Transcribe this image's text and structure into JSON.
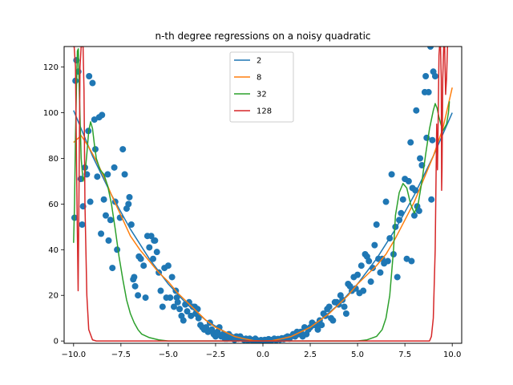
{
  "chart_data": {
    "type": "scatter",
    "title": "n-th degree regressions on a noisy quadratic",
    "xlabel": "",
    "ylabel": "",
    "xlim": [
      -10.5,
      10.5
    ],
    "ylim": [
      -1,
      129
    ],
    "x_ticks": [
      -10.0,
      -7.5,
      -5.0,
      -2.5,
      0.0,
      2.5,
      5.0,
      7.5,
      10.0
    ],
    "x_tick_labels": [
      "−10.0",
      "−7.5",
      "−5.0",
      "−2.5",
      "0.0",
      "2.5",
      "5.0",
      "7.5",
      "10.0"
    ],
    "y_ticks": [
      0,
      20,
      40,
      60,
      80,
      100,
      120
    ],
    "y_tick_labels": [
      "0",
      "20",
      "40",
      "60",
      "80",
      "100",
      "120"
    ],
    "grid": false,
    "legend_position": "top-center",
    "scatter_color": "#1f77b4",
    "scatter": [
      [
        -9.95,
        54
      ],
      [
        -9.9,
        114
      ],
      [
        -9.85,
        123
      ],
      [
        -9.75,
        118
      ],
      [
        -9.62,
        71
      ],
      [
        -9.55,
        51
      ],
      [
        -9.5,
        59
      ],
      [
        -9.4,
        76
      ],
      [
        -9.3,
        73
      ],
      [
        -9.22,
        92
      ],
      [
        -9.18,
        116
      ],
      [
        -9.12,
        61
      ],
      [
        -9.0,
        113
      ],
      [
        -8.9,
        97
      ],
      [
        -8.85,
        84
      ],
      [
        -8.75,
        72
      ],
      [
        -8.65,
        98
      ],
      [
        -8.55,
        47
      ],
      [
        -8.5,
        99
      ],
      [
        -8.4,
        62
      ],
      [
        -8.3,
        55
      ],
      [
        -8.2,
        73
      ],
      [
        -8.15,
        44
      ],
      [
        -8.05,
        53
      ],
      [
        -7.95,
        32
      ],
      [
        -7.85,
        76
      ],
      [
        -7.8,
        61
      ],
      [
        -7.7,
        40
      ],
      [
        -7.55,
        54
      ],
      [
        -7.4,
        84
      ],
      [
        -7.3,
        73
      ],
      [
        -7.2,
        58
      ],
      [
        -7.1,
        60
      ],
      [
        -7.05,
        63
      ],
      [
        -6.95,
        51
      ],
      [
        -6.85,
        27
      ],
      [
        -6.8,
        28
      ],
      [
        -6.75,
        24
      ],
      [
        -6.6,
        20
      ],
      [
        -6.55,
        37
      ],
      [
        -6.45,
        36
      ],
      [
        -6.3,
        33
      ],
      [
        -6.2,
        19
      ],
      [
        -6.1,
        46
      ],
      [
        -6.0,
        41
      ],
      [
        -5.9,
        46
      ],
      [
        -5.8,
        36
      ],
      [
        -5.75,
        44
      ],
      [
        -5.7,
        44
      ],
      [
        -5.6,
        39
      ],
      [
        -5.5,
        30
      ],
      [
        -5.4,
        22
      ],
      [
        -5.3,
        15
      ],
      [
        -5.2,
        32
      ],
      [
        -5.1,
        19
      ],
      [
        -5.0,
        33
      ],
      [
        -4.9,
        19
      ],
      [
        -4.8,
        28
      ],
      [
        -4.7,
        15
      ],
      [
        -4.6,
        22
      ],
      [
        -4.55,
        19
      ],
      [
        -4.5,
        17
      ],
      [
        -4.4,
        14
      ],
      [
        -4.3,
        11
      ],
      [
        -4.2,
        9
      ],
      [
        -4.1,
        16
      ],
      [
        -4.0,
        13
      ],
      [
        -3.9,
        17
      ],
      [
        -3.8,
        11
      ],
      [
        -3.7,
        15
      ],
      [
        -3.6,
        15
      ],
      [
        -3.55,
        12
      ],
      [
        -3.45,
        14
      ],
      [
        -3.4,
        10
      ],
      [
        -3.3,
        7
      ],
      [
        -3.2,
        6
      ],
      [
        -3.1,
        5
      ],
      [
        -3.0,
        6
      ],
      [
        -2.9,
        4
      ],
      [
        -2.8,
        8
      ],
      [
        -2.7,
        5
      ],
      [
        -2.6,
        3
      ],
      [
        -2.5,
        2
      ],
      [
        -2.4,
        4
      ],
      [
        -2.3,
        6
      ],
      [
        -2.2,
        2
      ],
      [
        -2.1,
        3
      ],
      [
        -2.0,
        1
      ],
      [
        -1.9,
        1
      ],
      [
        -1.8,
        3
      ],
      [
        -1.7,
        2
      ],
      [
        -1.6,
        1
      ],
      [
        -1.5,
        0.5
      ],
      [
        -1.4,
        2
      ],
      [
        -1.3,
        1
      ],
      [
        -1.2,
        2
      ],
      [
        -1.1,
        1
      ],
      [
        -1.0,
        0.5
      ],
      [
        -0.9,
        1
      ],
      [
        -0.8,
        0.3
      ],
      [
        -0.7,
        1
      ],
      [
        -0.6,
        0.5
      ],
      [
        -0.5,
        0.2
      ],
      [
        -0.4,
        1
      ],
      [
        -0.3,
        0.3
      ],
      [
        -0.2,
        0.1
      ],
      [
        -0.1,
        0.4
      ],
      [
        0.0,
        0.1
      ],
      [
        0.1,
        0.5
      ],
      [
        0.2,
        0.2
      ],
      [
        0.3,
        0.8
      ],
      [
        0.4,
        0.3
      ],
      [
        0.5,
        0.5
      ],
      [
        0.6,
        1
      ],
      [
        0.7,
        0.4
      ],
      [
        0.8,
        0.9
      ],
      [
        0.9,
        0.6
      ],
      [
        1.0,
        1.2
      ],
      [
        1.1,
        0.8
      ],
      [
        1.2,
        1.5
      ],
      [
        1.3,
        2
      ],
      [
        1.4,
        1
      ],
      [
        1.5,
        2
      ],
      [
        1.6,
        3
      ],
      [
        1.7,
        2
      ],
      [
        1.8,
        4
      ],
      [
        1.9,
        3
      ],
      [
        2.0,
        4
      ],
      [
        2.1,
        2
      ],
      [
        2.2,
        6
      ],
      [
        2.3,
        3
      ],
      [
        2.4,
        5
      ],
      [
        2.5,
        6
      ],
      [
        2.6,
        8
      ],
      [
        2.7,
        7
      ],
      [
        2.8,
        7
      ],
      [
        2.9,
        5
      ],
      [
        3.0,
        9
      ],
      [
        3.1,
        7
      ],
      [
        3.2,
        12
      ],
      [
        3.3,
        11
      ],
      [
        3.4,
        14
      ],
      [
        3.5,
        15
      ],
      [
        3.6,
        10
      ],
      [
        3.7,
        9
      ],
      [
        3.8,
        17
      ],
      [
        3.9,
        17
      ],
      [
        4.0,
        16
      ],
      [
        4.1,
        20
      ],
      [
        4.2,
        18
      ],
      [
        4.3,
        15
      ],
      [
        4.4,
        12
      ],
      [
        4.5,
        25
      ],
      [
        4.6,
        24
      ],
      [
        4.7,
        22
      ],
      [
        4.8,
        28
      ],
      [
        4.9,
        23
      ],
      [
        5.0,
        29
      ],
      [
        5.1,
        21
      ],
      [
        5.2,
        33
      ],
      [
        5.3,
        22
      ],
      [
        5.4,
        38
      ],
      [
        5.5,
        37
      ],
      [
        5.6,
        35
      ],
      [
        5.7,
        26
      ],
      [
        5.8,
        32
      ],
      [
        5.9,
        42
      ],
      [
        6.0,
        51
      ],
      [
        6.1,
        36
      ],
      [
        6.2,
        30
      ],
      [
        6.3,
        36
      ],
      [
        6.4,
        34
      ],
      [
        6.5,
        61
      ],
      [
        6.6,
        35
      ],
      [
        6.7,
        45
      ],
      [
        6.8,
        73
      ],
      [
        6.9,
        38
      ],
      [
        7.0,
        50
      ],
      [
        7.1,
        28
      ],
      [
        7.2,
        53
      ],
      [
        7.3,
        56
      ],
      [
        7.4,
        62
      ],
      [
        7.5,
        71
      ],
      [
        7.6,
        36
      ],
      [
        7.7,
        70
      ],
      [
        7.8,
        87
      ],
      [
        7.85,
        35
      ],
      [
        7.9,
        67
      ],
      [
        8.0,
        55
      ],
      [
        8.05,
        66
      ],
      [
        8.1,
        101
      ],
      [
        8.15,
        59
      ],
      [
        8.25,
        57
      ],
      [
        8.3,
        80
      ],
      [
        8.4,
        77
      ],
      [
        8.55,
        109
      ],
      [
        8.6,
        116
      ],
      [
        8.65,
        89
      ],
      [
        8.75,
        109
      ],
      [
        8.85,
        129
      ],
      [
        8.9,
        62
      ],
      [
        8.95,
        88
      ],
      [
        9.0,
        118
      ],
      [
        9.1,
        116
      ]
    ],
    "series": [
      {
        "name": "2",
        "degree": 2,
        "color": "#1f77b4"
      },
      {
        "name": "8",
        "degree": 8,
        "color": "#ff7f0e"
      },
      {
        "name": "32",
        "degree": 32,
        "color": "#2ca02c"
      },
      {
        "name": "128",
        "degree": 128,
        "color": "#d62728"
      }
    ],
    "curves": {
      "2": [
        [
          -10,
          101
        ],
        [
          -9,
          81
        ],
        [
          -8,
          64
        ],
        [
          -7,
          49
        ],
        [
          -6,
          36
        ],
        [
          -5,
          25
        ],
        [
          -4,
          16
        ],
        [
          -3,
          9
        ],
        [
          -2,
          4
        ],
        [
          -1,
          1
        ],
        [
          0,
          0
        ],
        [
          1,
          1
        ],
        [
          2,
          4
        ],
        [
          3,
          9
        ],
        [
          4,
          16
        ],
        [
          5,
          25
        ],
        [
          6,
          36
        ],
        [
          7,
          49
        ],
        [
          8,
          64
        ],
        [
          9,
          81
        ],
        [
          10,
          100
        ]
      ],
      "8": [
        [
          -10,
          87
        ],
        [
          -9.6,
          90
        ],
        [
          -9.2,
          85
        ],
        [
          -8.8,
          79
        ],
        [
          -8.4,
          72
        ],
        [
          -8,
          64
        ],
        [
          -7.5,
          55
        ],
        [
          -7,
          46
        ],
        [
          -6.5,
          40
        ],
        [
          -6,
          35
        ],
        [
          -5.5,
          30
        ],
        [
          -5,
          26
        ],
        [
          -4.5,
          21
        ],
        [
          -4,
          17
        ],
        [
          -3.5,
          13
        ],
        [
          -3,
          9
        ],
        [
          -2.5,
          6
        ],
        [
          -2,
          4
        ],
        [
          -1.5,
          2
        ],
        [
          -1,
          1
        ],
        [
          -0.5,
          0.2
        ],
        [
          0,
          0
        ],
        [
          0.5,
          0.2
        ],
        [
          1,
          1
        ],
        [
          1.5,
          2
        ],
        [
          2,
          4
        ],
        [
          2.5,
          6
        ],
        [
          3,
          9
        ],
        [
          3.5,
          12
        ],
        [
          4,
          16
        ],
        [
          4.5,
          20
        ],
        [
          5,
          25
        ],
        [
          5.5,
          29
        ],
        [
          6,
          33
        ],
        [
          6.5,
          38
        ],
        [
          7,
          45
        ],
        [
          7.5,
          53
        ],
        [
          8,
          61
        ],
        [
          8.5,
          71
        ],
        [
          9,
          81
        ],
        [
          9.5,
          93
        ],
        [
          10,
          111
        ]
      ],
      "32": [
        [
          -10,
          43
        ],
        [
          -9.95,
          60
        ],
        [
          -9.9,
          90
        ],
        [
          -9.85,
          110
        ],
        [
          -9.8,
          127
        ],
        [
          -9.75,
          128
        ],
        [
          -9.7,
          110
        ],
        [
          -9.6,
          80
        ],
        [
          -9.5,
          70
        ],
        [
          -9.4,
          73
        ],
        [
          -9.3,
          82
        ],
        [
          -9.2,
          92
        ],
        [
          -9.1,
          96
        ],
        [
          -9.0,
          93
        ],
        [
          -8.9,
          86
        ],
        [
          -8.8,
          80
        ],
        [
          -8.6,
          75
        ],
        [
          -8.4,
          73
        ],
        [
          -8.2,
          68
        ],
        [
          -8.0,
          60
        ],
        [
          -7.8,
          49
        ],
        [
          -7.6,
          37
        ],
        [
          -7.4,
          27
        ],
        [
          -7.2,
          18
        ],
        [
          -7.0,
          12
        ],
        [
          -6.8,
          8
        ],
        [
          -6.6,
          5
        ],
        [
          -6.4,
          3
        ],
        [
          -6.0,
          1.5
        ],
        [
          -5.5,
          0.5
        ],
        [
          -5.0,
          0
        ],
        [
          5.0,
          0
        ],
        [
          5.5,
          0.5
        ],
        [
          6.0,
          2
        ],
        [
          6.3,
          5
        ],
        [
          6.5,
          10
        ],
        [
          6.7,
          20
        ],
        [
          6.9,
          40
        ],
        [
          7.0,
          55
        ],
        [
          7.2,
          65
        ],
        [
          7.4,
          69
        ],
        [
          7.6,
          67
        ],
        [
          7.8,
          60
        ],
        [
          8.0,
          56
        ],
        [
          8.2,
          60
        ],
        [
          8.4,
          70
        ],
        [
          8.6,
          82
        ],
        [
          8.8,
          93
        ],
        [
          9.0,
          101
        ],
        [
          9.1,
          104
        ],
        [
          9.2,
          102
        ],
        [
          9.3,
          98
        ],
        [
          9.5,
          92
        ],
        [
          9.7,
          95
        ],
        [
          9.8,
          100
        ],
        [
          9.85,
          105
        ]
      ],
      "128": [
        [
          -10.02,
          129
        ],
        [
          -9.97,
          129
        ],
        [
          -9.9,
          120
        ],
        [
          -9.82,
          60
        ],
        [
          -9.76,
          22
        ],
        [
          -9.72,
          60
        ],
        [
          -9.66,
          120
        ],
        [
          -9.6,
          129
        ],
        [
          -9.5,
          129
        ],
        [
          -9.45,
          110
        ],
        [
          -9.4,
          60
        ],
        [
          -9.3,
          20
        ],
        [
          -9.2,
          5
        ],
        [
          -9.0,
          0.5
        ],
        [
          -8.8,
          0
        ],
        [
          8.8,
          0
        ],
        [
          8.9,
          2
        ],
        [
          9.0,
          10
        ],
        [
          9.1,
          40
        ],
        [
          9.15,
          75
        ],
        [
          9.18,
          95
        ],
        [
          9.2,
          80
        ],
        [
          9.22,
          75
        ],
        [
          9.25,
          92
        ],
        [
          9.3,
          125
        ],
        [
          9.33,
          129
        ],
        [
          9.38,
          129
        ],
        [
          9.42,
          115
        ],
        [
          9.44,
          66
        ],
        [
          9.46,
          75
        ],
        [
          9.5,
          115
        ],
        [
          9.55,
          129
        ],
        [
          9.6,
          129
        ],
        [
          9.65,
          108
        ],
        [
          9.7,
          115
        ],
        [
          9.75,
          129
        ]
      ]
    }
  }
}
